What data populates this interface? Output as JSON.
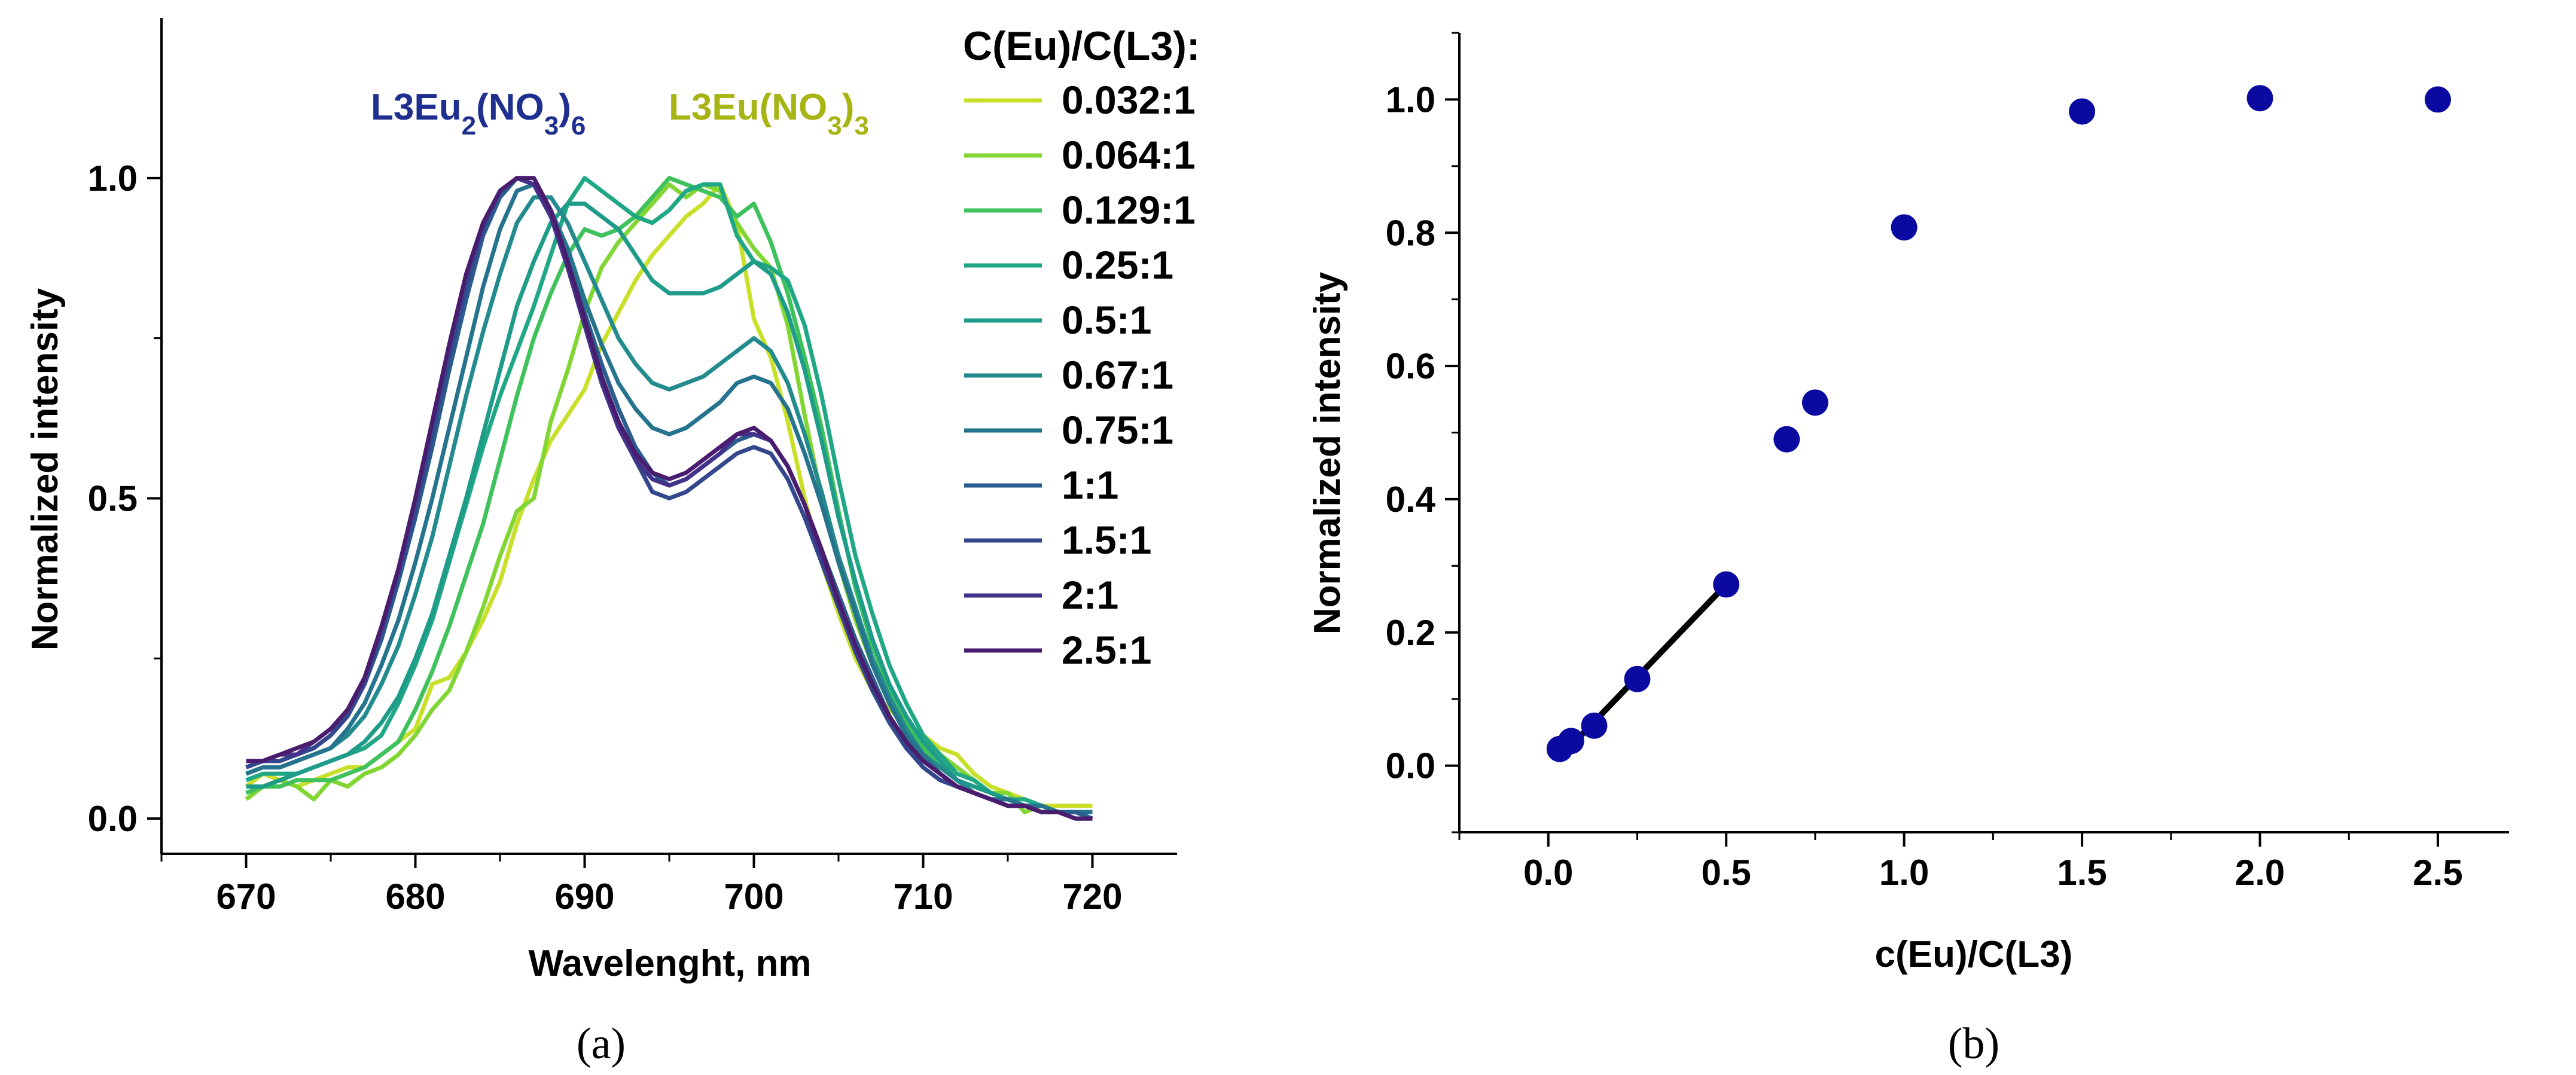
{
  "chart_data": [
    {
      "id": "a",
      "type": "line",
      "caption": "(a)",
      "xlabel": "Wavelenght, nm",
      "ylabel": "Normalized intensity",
      "xlim": [
        665,
        725
      ],
      "ylim": [
        -0.055,
        1.25
      ],
      "xticks": [
        670,
        680,
        690,
        700,
        710,
        720
      ],
      "xtick_labels": [
        "670",
        "680",
        "690",
        "700",
        "710",
        "720"
      ],
      "yticks": [
        0,
        0.5,
        1
      ],
      "ytick_labels": [
        "0.0",
        "0.5",
        "1.0"
      ],
      "legend_title": "C(Eu)/C(L3):",
      "annotations": [
        {
          "base": "L3Eu",
          "sub1": "2",
          "mid": "(NO",
          "sub2": "3",
          "tail": ")",
          "sub3": "6",
          "color": "#1f2f8f"
        },
        {
          "base": "L3Eu(NO",
          "sub1": "3",
          "mid": ")",
          "sub2": "3",
          "color": "#a6b414"
        }
      ],
      "x": [
        670,
        671,
        672,
        673,
        674,
        675,
        676,
        677,
        678,
        679,
        680,
        681,
        682,
        683,
        684,
        685,
        686,
        687,
        688,
        689,
        690,
        691,
        692,
        693,
        694,
        695,
        696,
        697,
        698,
        699,
        700,
        701,
        702,
        703,
        704,
        705,
        706,
        707,
        708,
        709,
        710,
        711,
        712,
        713,
        714,
        715,
        716,
        717,
        718,
        719,
        720
      ],
      "series": [
        {
          "name": "0.032:1",
          "color": "#c9e02a",
          "values": [
            0.05,
            0.07,
            0.06,
            0.05,
            0.06,
            0.07,
            0.08,
            0.08,
            0.1,
            0.12,
            0.14,
            0.21,
            0.22,
            0.26,
            0.31,
            0.37,
            0.46,
            0.53,
            0.59,
            0.63,
            0.67,
            0.74,
            0.79,
            0.84,
            0.88,
            0.91,
            0.94,
            0.96,
            0.99,
            0.93,
            0.78,
            0.72,
            0.62,
            0.5,
            0.4,
            0.32,
            0.25,
            0.2,
            0.17,
            0.15,
            0.13,
            0.11,
            0.1,
            0.07,
            0.05,
            0.04,
            0.03,
            0.02,
            0.02,
            0.02,
            0.02
          ]
        },
        {
          "name": "0.064:1",
          "color": "#82d634",
          "values": [
            0.03,
            0.05,
            0.06,
            0.05,
            0.03,
            0.06,
            0.05,
            0.07,
            0.08,
            0.1,
            0.13,
            0.17,
            0.2,
            0.26,
            0.33,
            0.41,
            0.48,
            0.5,
            0.62,
            0.7,
            0.79,
            0.86,
            0.9,
            0.93,
            0.96,
            0.99,
            0.97,
            0.99,
            0.98,
            0.93,
            0.89,
            0.86,
            0.77,
            0.63,
            0.5,
            0.4,
            0.31,
            0.24,
            0.18,
            0.14,
            0.12,
            0.1,
            0.08,
            0.06,
            0.04,
            0.04,
            0.01,
            0.02,
            0.01,
            0.01,
            0.01
          ]
        },
        {
          "name": "0.129:1",
          "color": "#3fc15c",
          "values": [
            0.04,
            0.05,
            0.05,
            0.06,
            0.06,
            0.06,
            0.07,
            0.08,
            0.1,
            0.12,
            0.17,
            0.23,
            0.3,
            0.38,
            0.46,
            0.56,
            0.66,
            0.75,
            0.82,
            0.88,
            0.92,
            0.91,
            0.92,
            0.94,
            0.97,
            1.0,
            0.99,
            0.98,
            0.97,
            0.94,
            0.96,
            0.9,
            0.82,
            0.72,
            0.61,
            0.48,
            0.36,
            0.27,
            0.2,
            0.15,
            0.11,
            0.08,
            0.06,
            0.05,
            0.04,
            0.03,
            0.02,
            0.02,
            0.01,
            0.01,
            0.01
          ]
        },
        {
          "name": "0.25:1",
          "color": "#20a886",
          "values": [
            0.06,
            0.07,
            0.07,
            0.07,
            0.08,
            0.09,
            0.1,
            0.11,
            0.13,
            0.18,
            0.24,
            0.31,
            0.4,
            0.49,
            0.58,
            0.66,
            0.73,
            0.8,
            0.88,
            0.96,
            1.0,
            0.98,
            0.96,
            0.94,
            0.93,
            0.95,
            0.98,
            0.99,
            0.99,
            0.91,
            0.87,
            0.86,
            0.84,
            0.77,
            0.66,
            0.53,
            0.41,
            0.32,
            0.24,
            0.18,
            0.13,
            0.1,
            0.07,
            0.06,
            0.04,
            0.03,
            0.03,
            0.02,
            0.01,
            0.01,
            0.01
          ]
        },
        {
          "name": "0.5:1",
          "color": "#1e9c89",
          "values": [
            0.05,
            0.05,
            0.06,
            0.07,
            0.08,
            0.09,
            0.1,
            0.12,
            0.15,
            0.19,
            0.25,
            0.32,
            0.41,
            0.5,
            0.6,
            0.7,
            0.8,
            0.87,
            0.93,
            0.96,
            0.96,
            0.94,
            0.92,
            0.88,
            0.84,
            0.82,
            0.82,
            0.82,
            0.83,
            0.85,
            0.87,
            0.85,
            0.79,
            0.7,
            0.59,
            0.47,
            0.37,
            0.28,
            0.21,
            0.16,
            0.12,
            0.09,
            0.06,
            0.05,
            0.04,
            0.03,
            0.02,
            0.02,
            0.01,
            0.01,
            0.01
          ]
        },
        {
          "name": "0.67:1",
          "color": "#238a8d",
          "values": [
            0.07,
            0.08,
            0.08,
            0.09,
            0.1,
            0.11,
            0.13,
            0.16,
            0.21,
            0.27,
            0.35,
            0.44,
            0.55,
            0.66,
            0.76,
            0.85,
            0.93,
            0.97,
            0.97,
            0.93,
            0.87,
            0.81,
            0.75,
            0.71,
            0.68,
            0.67,
            0.68,
            0.69,
            0.71,
            0.73,
            0.75,
            0.73,
            0.68,
            0.6,
            0.51,
            0.41,
            0.33,
            0.25,
            0.19,
            0.14,
            0.1,
            0.08,
            0.06,
            0.04,
            0.03,
            0.03,
            0.02,
            0.02,
            0.01,
            0.01,
            0.01
          ]
        },
        {
          "name": "0.75:1",
          "color": "#26738e",
          "values": [
            0.07,
            0.08,
            0.08,
            0.09,
            0.1,
            0.11,
            0.14,
            0.18,
            0.24,
            0.31,
            0.4,
            0.5,
            0.61,
            0.72,
            0.83,
            0.92,
            0.98,
            0.99,
            0.95,
            0.89,
            0.81,
            0.74,
            0.68,
            0.64,
            0.61,
            0.6,
            0.61,
            0.63,
            0.65,
            0.68,
            0.69,
            0.68,
            0.64,
            0.57,
            0.49,
            0.4,
            0.32,
            0.24,
            0.18,
            0.13,
            0.1,
            0.07,
            0.05,
            0.04,
            0.03,
            0.03,
            0.02,
            0.02,
            0.01,
            0.01,
            0.01
          ]
        },
        {
          "name": "1:1",
          "color": "#2a5d8e",
          "values": [
            0.08,
            0.09,
            0.09,
            0.1,
            0.11,
            0.13,
            0.16,
            0.21,
            0.28,
            0.37,
            0.47,
            0.58,
            0.7,
            0.81,
            0.91,
            0.97,
            1.0,
            0.99,
            0.94,
            0.87,
            0.79,
            0.71,
            0.64,
            0.58,
            0.54,
            0.52,
            0.53,
            0.55,
            0.57,
            0.59,
            0.6,
            0.59,
            0.55,
            0.49,
            0.42,
            0.35,
            0.28,
            0.22,
            0.16,
            0.12,
            0.09,
            0.07,
            0.05,
            0.04,
            0.03,
            0.02,
            0.02,
            0.01,
            0.01,
            0.01,
            0.0
          ]
        },
        {
          "name": "1.5:1",
          "color": "#34478c",
          "values": [
            0.08,
            0.09,
            0.09,
            0.1,
            0.11,
            0.13,
            0.16,
            0.21,
            0.29,
            0.38,
            0.48,
            0.6,
            0.72,
            0.83,
            0.92,
            0.98,
            1.0,
            0.99,
            0.94,
            0.87,
            0.78,
            0.69,
            0.62,
            0.56,
            0.51,
            0.5,
            0.51,
            0.53,
            0.55,
            0.57,
            0.58,
            0.57,
            0.53,
            0.47,
            0.4,
            0.33,
            0.26,
            0.2,
            0.15,
            0.11,
            0.08,
            0.06,
            0.05,
            0.04,
            0.03,
            0.02,
            0.02,
            0.01,
            0.01,
            0.0,
            0.0
          ]
        },
        {
          "name": "2:1",
          "color": "#43328a",
          "values": [
            0.09,
            0.09,
            0.1,
            0.1,
            0.12,
            0.14,
            0.17,
            0.22,
            0.3,
            0.39,
            0.5,
            0.62,
            0.74,
            0.85,
            0.93,
            0.98,
            1.0,
            0.99,
            0.94,
            0.86,
            0.77,
            0.68,
            0.61,
            0.56,
            0.53,
            0.52,
            0.53,
            0.55,
            0.57,
            0.6,
            0.6,
            0.59,
            0.55,
            0.49,
            0.41,
            0.34,
            0.27,
            0.21,
            0.16,
            0.12,
            0.09,
            0.07,
            0.05,
            0.04,
            0.03,
            0.02,
            0.02,
            0.01,
            0.01,
            0.0,
            0.0
          ]
        },
        {
          "name": "2.5:1",
          "color": "#4a1c6e",
          "values": [
            0.09,
            0.09,
            0.1,
            0.11,
            0.12,
            0.14,
            0.17,
            0.22,
            0.3,
            0.39,
            0.5,
            0.62,
            0.74,
            0.85,
            0.93,
            0.98,
            1.0,
            1.0,
            0.95,
            0.87,
            0.78,
            0.69,
            0.62,
            0.57,
            0.54,
            0.53,
            0.54,
            0.56,
            0.58,
            0.6,
            0.61,
            0.59,
            0.55,
            0.49,
            0.42,
            0.34,
            0.27,
            0.21,
            0.16,
            0.12,
            0.09,
            0.07,
            0.05,
            0.04,
            0.03,
            0.02,
            0.02,
            0.01,
            0.01,
            0.0,
            0.0
          ]
        }
      ]
    },
    {
      "id": "b",
      "type": "scatter",
      "caption": "(b)",
      "xlabel": "c(Eu)/C(L3)",
      "ylabel": "Normalized intensity",
      "xlim": [
        -0.25,
        2.7
      ],
      "ylim": [
        -0.1,
        1.1
      ],
      "xticks": [
        0,
        0.5,
        1,
        1.5,
        2,
        2.5
      ],
      "xtick_labels": [
        "0.0",
        "0.5",
        "1.0",
        "1.5",
        "2.0",
        "2.5"
      ],
      "yticks": [
        0,
        0.2,
        0.4,
        0.6,
        0.8,
        1
      ],
      "ytick_labels": [
        "0.0",
        "0.2",
        "0.4",
        "0.6",
        "0.8",
        "1.0"
      ],
      "marker_color": "#0a0aa0",
      "points": {
        "x": [
          0.032,
          0.064,
          0.129,
          0.25,
          0.5,
          0.67,
          0.75,
          1.0,
          1.5,
          2.0,
          2.5
        ],
        "y": [
          0.025,
          0.037,
          0.06,
          0.13,
          0.272,
          0.49,
          0.545,
          0.808,
          0.982,
          1.002,
          1.0
        ]
      },
      "fit_line": {
        "x": [
          0.032,
          0.5
        ],
        "y": [
          0.012,
          0.272
        ],
        "color": "#000000"
      }
    }
  ]
}
